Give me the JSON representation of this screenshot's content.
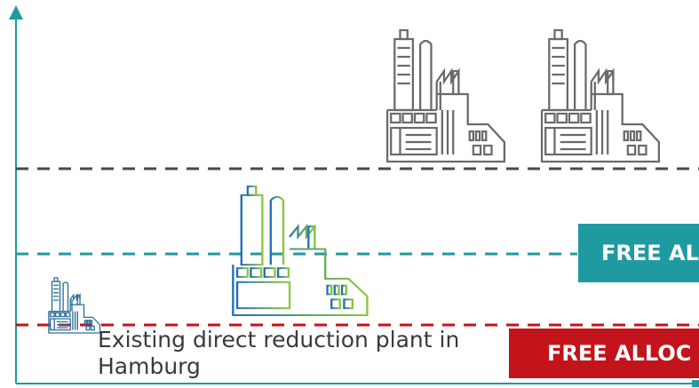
{
  "caption": "Existing direct reduction plant in Hamburg",
  "badges": {
    "teal": "FREE AL",
    "red": "FREE ALLOC"
  },
  "colors": {
    "axis": "#1f9aa0",
    "grey_line": "#4a4a4a",
    "teal_line": "#1f9aa0",
    "red_line": "#c3131b",
    "teal_badge": "#1f9aa0",
    "red_badge": "#c3131b",
    "factory_grey": "#6a6a6a",
    "factory_blue": "#1f6fb2",
    "factory_green": "#8cc83c"
  },
  "icons": [
    "factory-icon-grey",
    "factory-icon-grey",
    "factory-icon-gradient",
    "factory-icon-small"
  ]
}
